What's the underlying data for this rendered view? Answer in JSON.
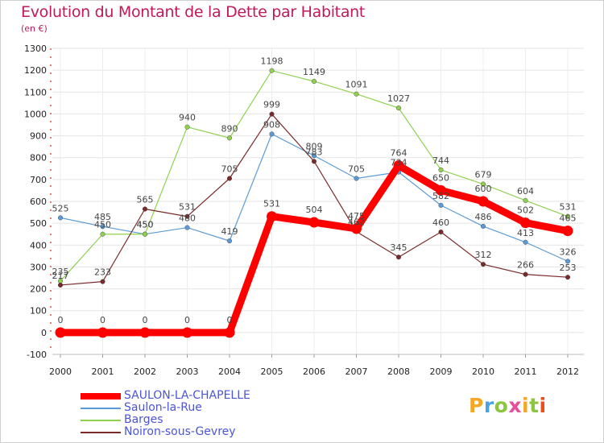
{
  "header": {
    "title": "Evolution du Montant de la Dette par Habitant",
    "subtitle": "(en €)"
  },
  "brand": {
    "letters": [
      "P",
      "r",
      "o",
      "x",
      "i",
      "t",
      "i"
    ],
    "colors": [
      "#f5a623",
      "#4aa3df",
      "#8cc63f",
      "#e94e9a",
      "#f5a623",
      "#8cc63f",
      "#e94e1b"
    ]
  },
  "chart_data": {
    "type": "line",
    "title": "Evolution du Montant de la Dette par Habitant",
    "ylabel": "(en €)",
    "xlabel": "",
    "x": [
      "2000",
      "2001",
      "2002",
      "2003",
      "2004",
      "2005",
      "2006",
      "2007",
      "2008",
      "2009",
      "2010",
      "2011",
      "2012"
    ],
    "ylim": [
      -100,
      1300
    ],
    "yticks": [
      "-100",
      "0",
      "100",
      "200",
      "300",
      "400",
      "500",
      "600",
      "700",
      "800",
      "900",
      "1000",
      "1100",
      "1200",
      "1300"
    ],
    "grid": true,
    "legend_position": "bottom-left",
    "series": [
      {
        "name": "Saulon-la-Rue",
        "color": "#5b9bd5",
        "values": [
          525,
          485,
          450,
          480,
          419,
          908,
          809,
          705,
          734,
          582,
          486,
          413,
          326
        ],
        "labels": [
          "525",
          "485",
          "450",
          "480",
          "419",
          "908",
          "809",
          "705",
          "734",
          "582",
          "486",
          "413",
          "326"
        ]
      },
      {
        "name": "Barges",
        "color": "#8fd14f",
        "values": [
          235,
          450,
          450,
          940,
          890,
          1198,
          1149,
          1091,
          1027,
          744,
          679,
          604,
          531
        ],
        "labels": [
          "235",
          "450",
          "450",
          "940",
          "890",
          "1198",
          "1149",
          "1091",
          "1027",
          "744",
          "679",
          "604",
          "531"
        ]
      },
      {
        "name": "Noiron-sous-Gevrey",
        "color": "#7a2a2a",
        "values": [
          217,
          233,
          565,
          531,
          705,
          999,
          783,
          462,
          345,
          460,
          312,
          266,
          253
        ],
        "labels": [
          "217",
          "233",
          "565",
          "531",
          "705",
          "999",
          "783",
          "462",
          "345",
          "460",
          "312",
          "266",
          "253"
        ]
      },
      {
        "name": "SAULON-LA-CHAPELLE",
        "color": "#ff0000",
        "values": [
          0,
          0,
          0,
          0,
          0,
          531,
          504,
          475,
          764,
          650,
          600,
          502,
          465
        ],
        "labels": [
          "0",
          "0",
          "0",
          "0",
          "0",
          "531",
          "504",
          "475",
          "764",
          "650",
          "600",
          "502",
          "465"
        ]
      }
    ],
    "legend_order": [
      "SAULON-LA-CHAPELLE",
      "Saulon-la-Rue",
      "Barges",
      "Noiron-sous-Gevrey"
    ]
  }
}
